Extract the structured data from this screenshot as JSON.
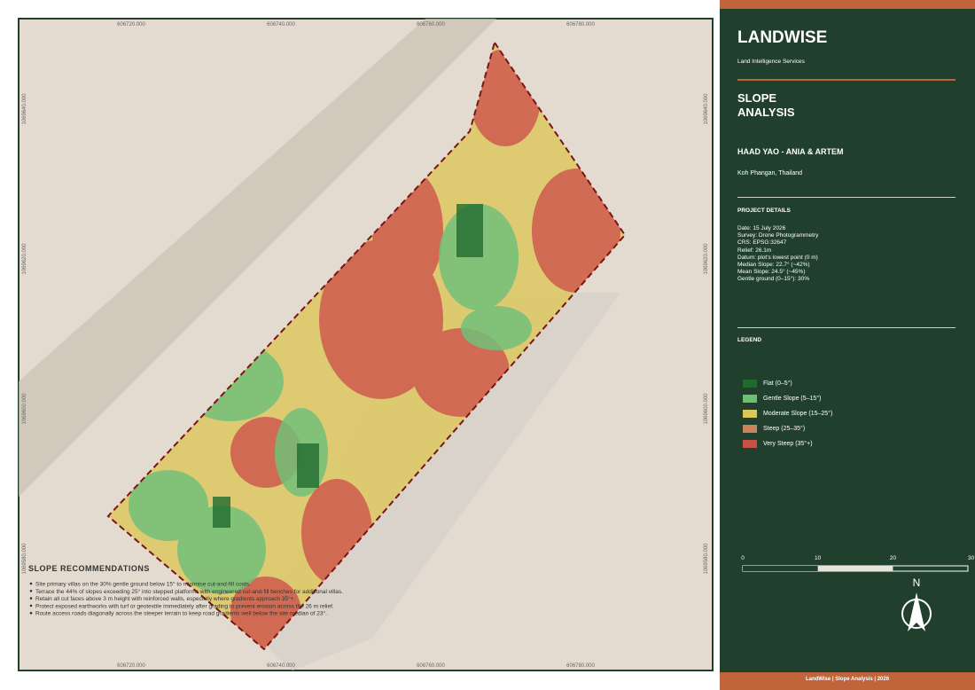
{
  "map": {
    "x_coords": [
      "606720.000",
      "606740.000",
      "606760.000",
      "606780.000"
    ],
    "y_coords": [
      "1069640.000",
      "1069620.000",
      "1069600.000",
      "1069580.000"
    ]
  },
  "recommendations": {
    "title": "SLOPE RECOMMENDATIONS",
    "items": [
      "Site primary villas on the 30% gentle ground below 15° to minimise cut-and-fill costs.",
      "Terrace the 44% of slopes exceeding 25° into stepped platforms with engineered cut-and-fill benches for additional villas.",
      "Retain all cut faces above 3 m height with reinforced walls, especially where gradients approach 35°+.",
      "Protect exposed earthworks with turf or geotextile immediately after grading to prevent erosion across the 26 m relief.",
      "Route access roads diagonally across the steeper terrain to keep road gradients well below the site median of 23°."
    ]
  },
  "sidebar": {
    "brand": "LANDWISE",
    "tagline": "Land Intelligence Services",
    "title": "SLOPE\nANALYSIS",
    "project": "HAAD YAO - ANIA & ARTEM",
    "location": "Koh Phangan, Thailand",
    "details_heading": "PROJECT DETAILS",
    "details": [
      "Date:  15 July 2026",
      "Survey:  Drone Photogrammetry",
      "CRS:  EPSG:32647",
      "Relief:  26.1m",
      "Datum:  plot's lowest point (0 m)",
      "Median Slope:  22.7°  (~42%)",
      "Mean Slope:  24.5°  (~45%)",
      "Gentle ground (0–15°):  30%"
    ],
    "legend_heading": "LEGEND",
    "legend": [
      {
        "label": "Flat (0–5°)",
        "color": "#1f6b2e"
      },
      {
        "label": "Gentle Slope (5–15°)",
        "color": "#6fbf73"
      },
      {
        "label": "Moderate Slope (15–25°)",
        "color": "#d9c75a"
      },
      {
        "label": "Steep (25–35°)",
        "color": "#c8845a"
      },
      {
        "label": "Very Steep (35°+)",
        "color": "#c9504a"
      }
    ],
    "scale": [
      "0",
      "10",
      "20",
      "30 m"
    ],
    "north": "N",
    "footer": "LandWise  |  Slope Analysis  |  2026"
  }
}
